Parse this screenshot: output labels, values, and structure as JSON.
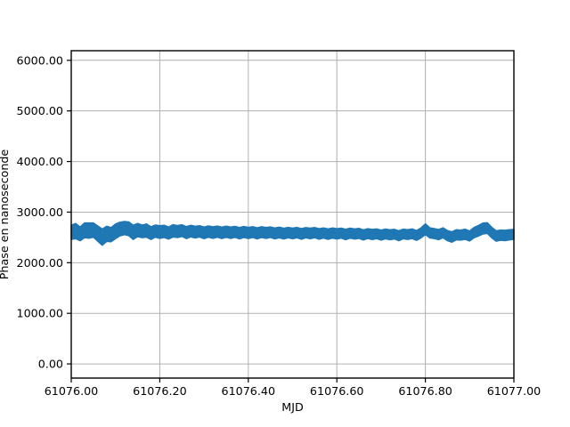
{
  "figure": {
    "background": "#ffffff",
    "title": ""
  },
  "chart_data": {
    "type": "line",
    "title": "",
    "xlabel": "MJD",
    "ylabel": "Phase en nanoseconde",
    "xlim": [
      61076.0,
      61077.0
    ],
    "ylim": [
      -280,
      6190
    ],
    "grid": true,
    "grid_color": "#b0b0b0",
    "axis_color": "#000000",
    "text_color": "#000000",
    "legend_visible": false,
    "xticks": {
      "values": [
        61076.0,
        61076.2,
        61076.4,
        61076.6,
        61076.8,
        61077.0
      ],
      "labels": [
        "61076.00",
        "61076.20",
        "61076.40",
        "61076.60",
        "61076.80",
        "61077.00"
      ]
    },
    "yticks": {
      "values": [
        0,
        1000,
        2000,
        3000,
        4000,
        5000,
        6000
      ],
      "labels": [
        "0.00",
        "1000.00",
        "2000.00",
        "3000.00",
        "4000.00",
        "5000.00",
        "6000.00"
      ]
    },
    "series": [
      {
        "name": "phase",
        "color": "#1f77b4",
        "style": "noisy-band",
        "x_start": 61076.0,
        "x_step": 0.01,
        "center_ns": [
          2600,
          2625,
          2570,
          2640,
          2635,
          2645,
          2575,
          2505,
          2570,
          2555,
          2620,
          2665,
          2685,
          2670,
          2600,
          2645,
          2620,
          2635,
          2585,
          2625,
          2605,
          2620,
          2585,
          2630,
          2615,
          2635,
          2595,
          2625,
          2605,
          2620,
          2590,
          2615,
          2595,
          2615,
          2590,
          2612,
          2592,
          2610,
          2583,
          2608,
          2588,
          2605,
          2580,
          2605,
          2588,
          2603,
          2578,
          2598,
          2575,
          2596,
          2578,
          2595,
          2570,
          2593,
          2578,
          2595,
          2568,
          2588,
          2565,
          2586,
          2570,
          2585,
          2558,
          2585,
          2568,
          2580,
          2548,
          2575,
          2558,
          2572,
          2545,
          2570,
          2552,
          2565,
          2533,
          2568,
          2556,
          2572,
          2538,
          2588,
          2662,
          2590,
          2575,
          2555,
          2592,
          2535,
          2508,
          2552,
          2545,
          2562,
          2528,
          2595,
          2632,
          2675,
          2685,
          2595,
          2528,
          2545,
          2538,
          2552,
          2560
        ],
        "half_width_ns": [
          140,
          150,
          135,
          145,
          150,
          140,
          150,
          160,
          150,
          140,
          145,
          135,
          130,
          135,
          140,
          130,
          125,
          130,
          125,
          120,
          125,
          120,
          118,
          122,
          118,
          115,
          118,
          114,
          116,
          112,
          115,
          112,
          114,
          110,
          112,
          110,
          112,
          108,
          112,
          108,
          110,
          106,
          110,
          106,
          108,
          104,
          108,
          104,
          106,
          102,
          105,
          102,
          105,
          100,
          104,
          100,
          104,
          100,
          102,
          100,
          102,
          98,
          102,
          98,
          100,
          98,
          100,
          96,
          100,
          96,
          98,
          96,
          98,
          95,
          98,
          95,
          96,
          95,
          96,
          98,
          105,
          100,
          98,
          100,
          98,
          100,
          102,
          100,
          98,
          100,
          98,
          102,
          105,
          108,
          105,
          104,
          102,
          100,
          102,
          100,
          98
        ]
      }
    ]
  }
}
